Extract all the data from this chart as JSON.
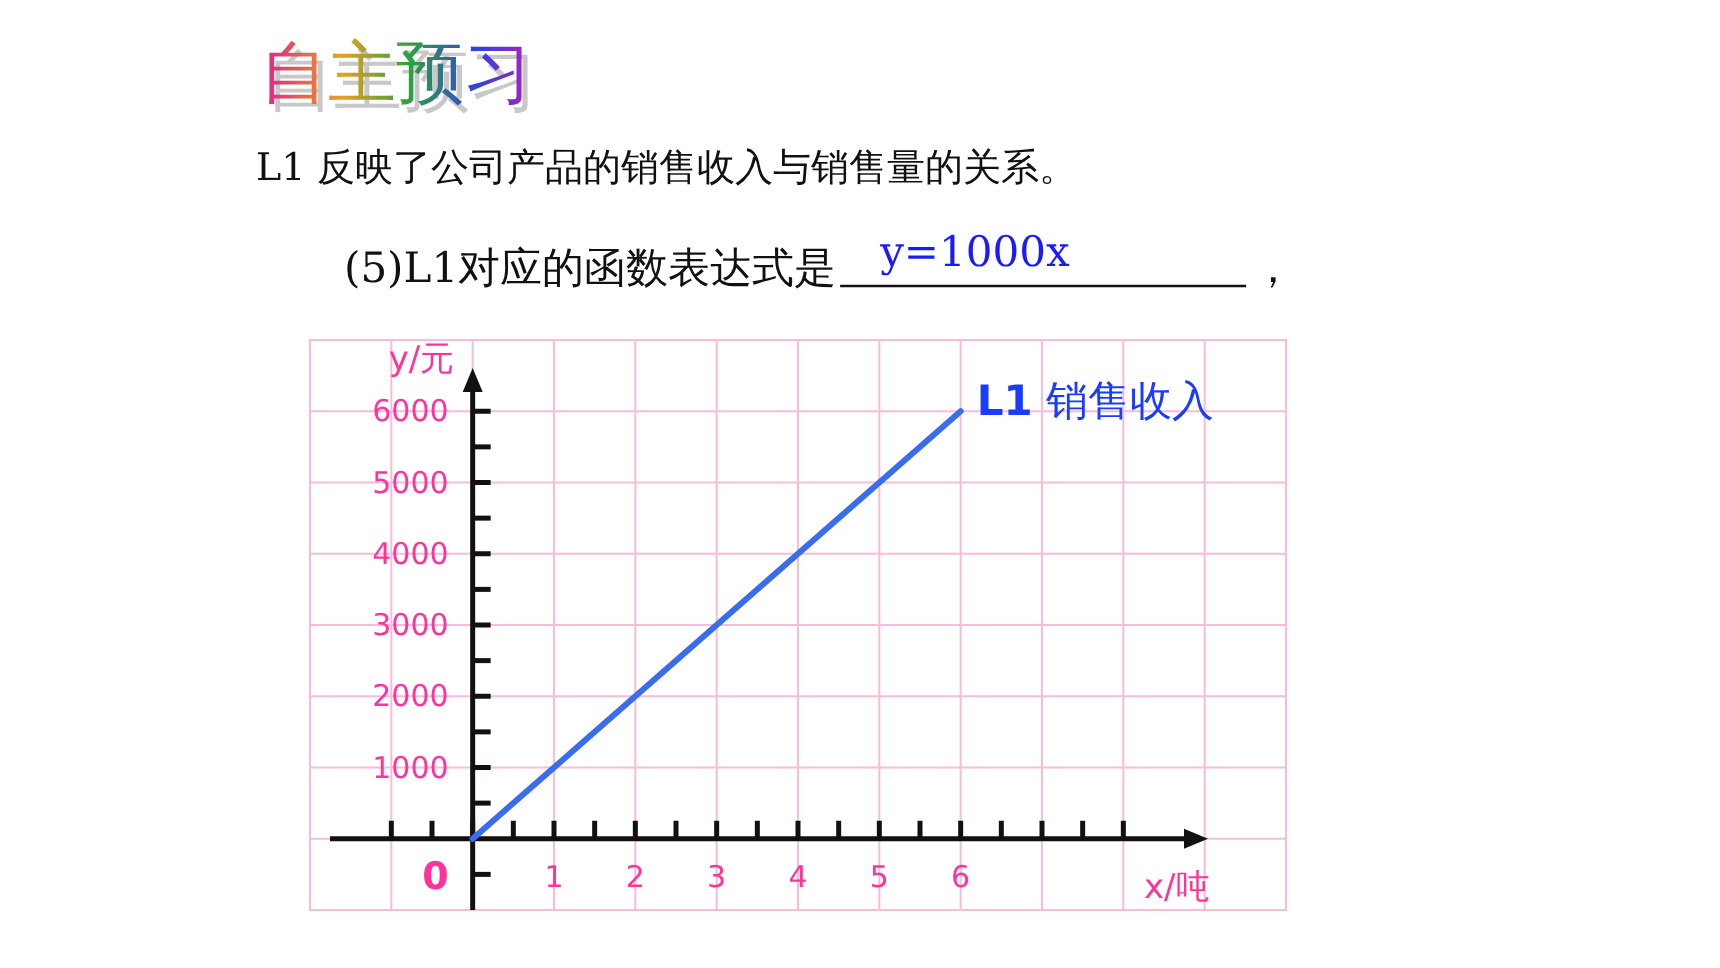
{
  "chart_data": {
    "type": "line",
    "title": "自主预习",
    "subtitle": "L1 反映了公司产品的销售收入与销售量的关系。",
    "annotations": [
      "(5)L1对应的函数表达式是",
      "y=1000x",
      "，",
      {
        "text": "0",
        "x": 0,
        "y": 0
      }
    ],
    "xlabel": "x/吨",
    "ylabel": "y/元",
    "x": [
      0,
      6
    ],
    "series": [
      {
        "name": "**L1** 销售收入",
        "color": "#3a6cf0",
        "values": [
          0,
          6000
        ]
      }
    ],
    "xlim": [
      -2,
      10
    ],
    "ylim": [
      -1000,
      7000
    ],
    "xticks": [
      {
        "value": -1,
        "label": null
      },
      {
        "value": -0.5,
        "label": null
      },
      {
        "value": 0,
        "label": null
      },
      {
        "value": 0.5,
        "label": null
      },
      1,
      {
        "value": 1.5,
        "label": null
      },
      2,
      {
        "value": 2.5,
        "label": null
      },
      3,
      {
        "value": 3.5,
        "label": null
      },
      4,
      {
        "value": 4.5,
        "label": null
      },
      5,
      {
        "value": 5.5,
        "label": null
      },
      6,
      {
        "value": 6.5,
        "label": null
      },
      {
        "value": 7,
        "label": null
      },
      {
        "value": 7.5,
        "label": null
      },
      {
        "value": 8,
        "label": null
      }
    ],
    "yticks": [
      {
        "value": -500,
        "label": null
      },
      {
        "value": 500,
        "label": null
      },
      1000,
      {
        "value": 1500,
        "label": null
      },
      2000,
      {
        "value": 2500,
        "label": null
      },
      3000,
      {
        "value": 3500,
        "label": null
      },
      4000,
      {
        "value": 4500,
        "label": null
      },
      5000,
      {
        "value": 5500,
        "label": null
      },
      6000
    ],
    "grid": true,
    "marker": "none",
    "line_style": "solid"
  }
}
